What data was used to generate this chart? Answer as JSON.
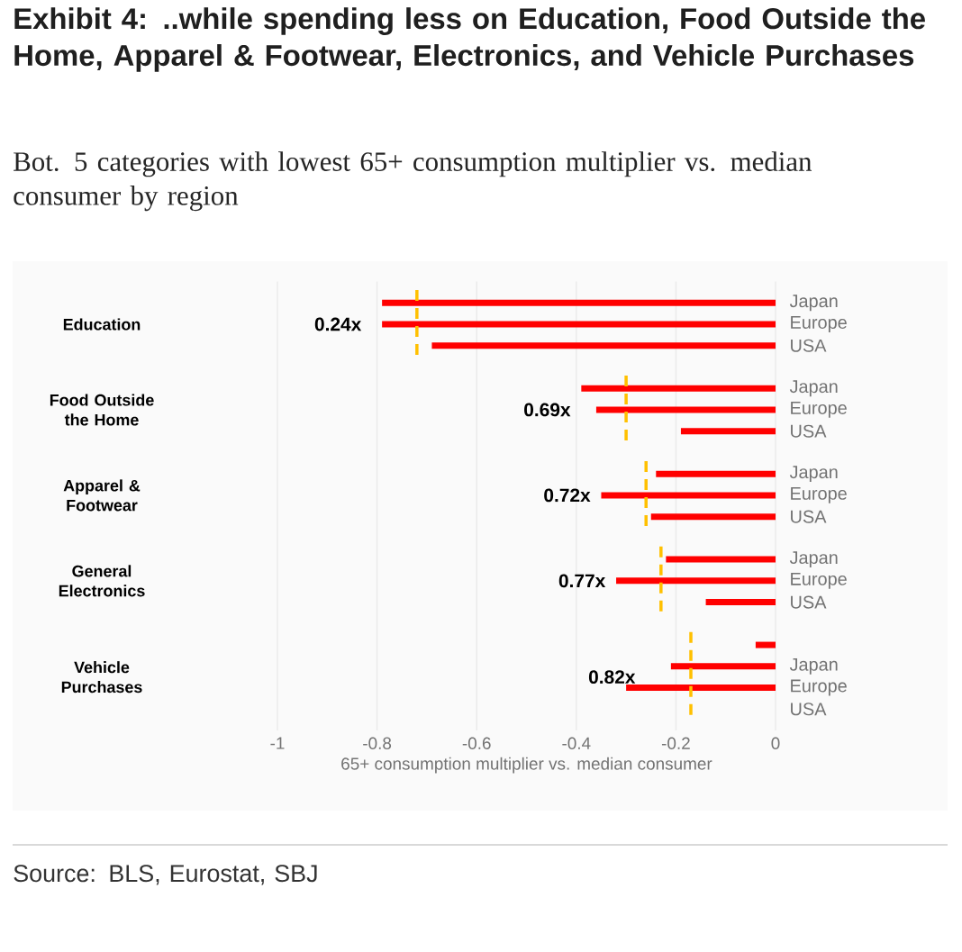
{
  "chart_data": {
    "type": "bar",
    "orientation": "horizontal",
    "title": "Exhibit 4: ..while spending less on Education, Food Outside the Home, Apparel & Footwear, Electronics, and Vehicle Purchases",
    "subtitle": "Bot. 5 categories with lowest 65+ consumption multiplier vs. median consumer by region",
    "xlabel": "65+ consumption multiplier vs. median consumer",
    "categories": [
      "Japan",
      "Europe",
      "USA",
      null,
      "Japan",
      "Europe",
      "USA",
      null,
      "Japan",
      "Europe",
      "USA",
      null,
      "Japan",
      "Europe",
      "USA",
      null,
      null,
      "Japan",
      "Europe",
      "USA"
    ],
    "values": [
      -0.79,
      -0.79,
      -0.69,
      null,
      -0.39,
      -0.36,
      -0.19,
      null,
      -0.24,
      -0.35,
      -0.25,
      null,
      -0.22,
      -0.32,
      -0.14,
      null,
      -0.04,
      -0.21,
      -0.3,
      null
    ],
    "color": "#ff0000",
    "xlim": [
      -1,
      0
    ],
    "xticks": [
      -1,
      -0.8,
      -0.6,
      -0.4,
      -0.2,
      0
    ],
    "grid": "x",
    "ref_lines": [
      {
        "axis": "x",
        "value": -0.72,
        "label": "0.24x",
        "color": "#ffc000",
        "line_style": "dashed"
      },
      {
        "axis": "x",
        "value": -0.3,
        "label": "0.69x",
        "color": "#ffc000",
        "line_style": "dashed"
      },
      {
        "axis": "x",
        "value": -0.26,
        "label": "0.72x",
        "color": "#ffc000",
        "line_style": "dashed"
      },
      {
        "axis": "x",
        "value": -0.23,
        "label": "0.77x",
        "color": "#ffc000",
        "line_style": "dashed"
      },
      {
        "axis": "x",
        "value": -0.17,
        "label": "0.82x",
        "color": "#ffc000",
        "line_style": "dashed"
      }
    ],
    "annotations": [
      "Education",
      "Food Outside the Home",
      "Apparel & Footwear",
      "General Electronics",
      "Vehicle Purchases",
      "Source: BLS, Eurostat, SBJ"
    ]
  }
}
